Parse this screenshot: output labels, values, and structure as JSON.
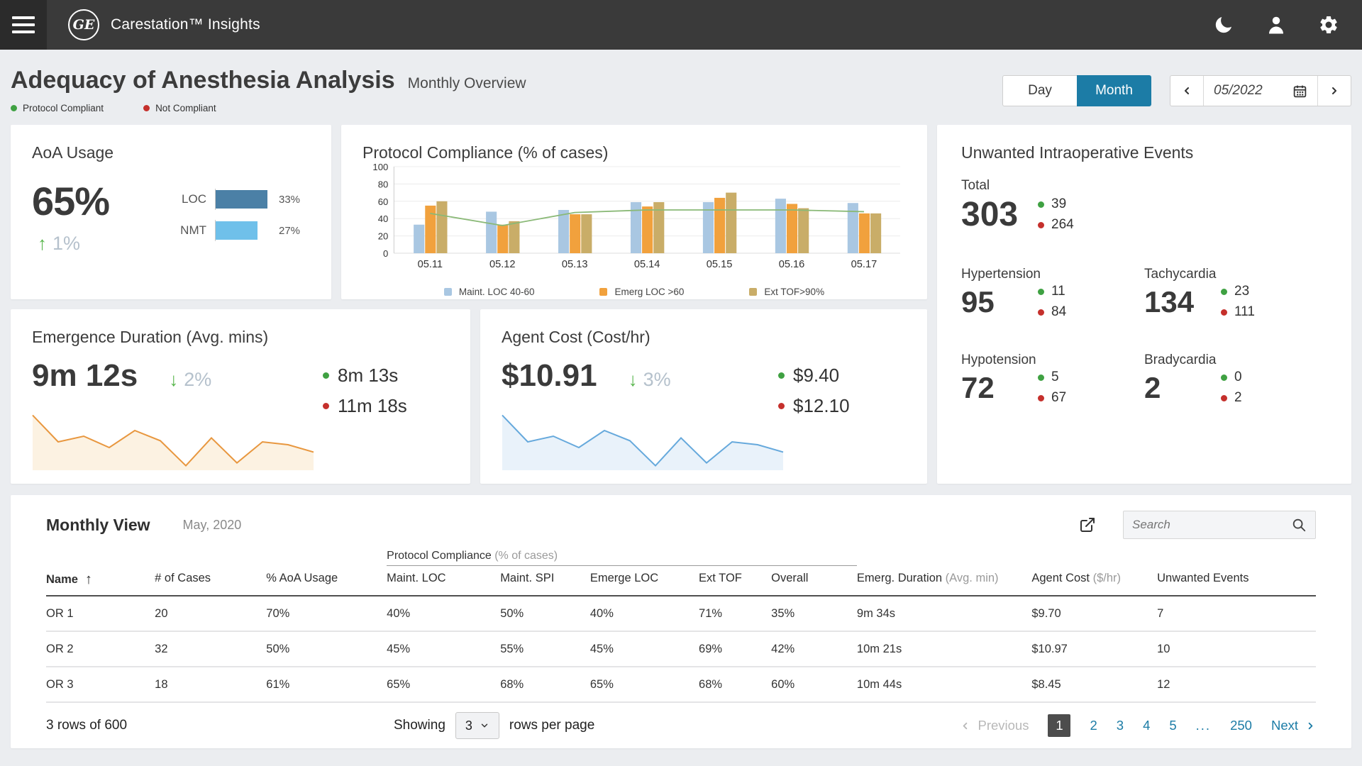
{
  "header": {
    "brand": "Carestation™ Insights",
    "logo": "GE"
  },
  "icons": {
    "trend_up": "↑",
    "trend_down": "↓",
    "sort_up": "↑"
  },
  "page": {
    "title": "Adequacy of Anesthesia Analysis",
    "subtitle": "Monthly Overview",
    "legend": [
      {
        "label": "Protocol Compliant",
        "color": "#3fa142"
      },
      {
        "label": "Not Compliant",
        "color": "#c5302c"
      }
    ],
    "toggle": {
      "day": "Day",
      "month": "Month",
      "selected": "Month",
      "accent": "#1c7ca6"
    },
    "date": "05/2022"
  },
  "cards": {
    "aoa": {
      "title": "AoA Usage",
      "value": "65%",
      "trend": "1%",
      "trend_dir": "up",
      "bars": [
        {
          "label": "LOC",
          "value": 33,
          "pct": "33%",
          "color": "#4b80a6"
        },
        {
          "label": "NMT",
          "value": 27,
          "pct": "27%",
          "color": "#6fc0ea"
        }
      ],
      "bar_scale_max": 35
    },
    "protocol": {
      "title": "Protocol Compliance (% of cases)"
    },
    "events": {
      "title": "Unwanted Intraoperative Events",
      "groups": [
        {
          "label": "Total",
          "value": "303",
          "good": "39",
          "bad": "264"
        },
        {
          "label": "Hypertension",
          "value": "95",
          "good": "11",
          "bad": "84"
        },
        {
          "label": "Tachycardia",
          "value": "134",
          "good": "23",
          "bad": "111"
        },
        {
          "label": "Hypotension",
          "value": "72",
          "good": "5",
          "bad": "67"
        },
        {
          "label": "Bradycardia",
          "value": "2",
          "good": "0",
          "bad": "2"
        }
      ]
    },
    "emergence": {
      "title": "Emergence Duration (Avg. mins)",
      "value": "9m 12s",
      "trend": "2%",
      "trend_dir": "down",
      "good": "8m 13s",
      "bad": "11m 18s"
    },
    "cost": {
      "title": "Agent Cost (Cost/hr)",
      "value": "$10.91",
      "trend": "3%",
      "trend_dir": "down",
      "good": "$9.40",
      "bad": "$12.10"
    }
  },
  "chart_data": [
    {
      "type": "bar",
      "title": "Protocol Compliance (% of cases)",
      "categories": [
        "05.11",
        "05.12",
        "05.13",
        "05.14",
        "05.15",
        "05.16",
        "05.17"
      ],
      "series": [
        {
          "name": "Maint. LOC 40-60",
          "type": "bar",
          "color": "#a9c7e2",
          "values": [
            33,
            48,
            50,
            59,
            59,
            63,
            58
          ]
        },
        {
          "name": "Emerg LOC >60",
          "type": "bar",
          "color": "#f1a13d",
          "values": [
            55,
            33,
            45,
            54,
            64,
            57,
            46
          ]
        },
        {
          "name": "Ext TOF>90%",
          "type": "bar",
          "color": "#c9ad68",
          "values": [
            60,
            37,
            45,
            59,
            70,
            52,
            46
          ]
        },
        {
          "name": "trend-line",
          "type": "line",
          "color": "#8ab977",
          "values": [
            46,
            32,
            47,
            50,
            50,
            50,
            48
          ]
        }
      ],
      "ylim": [
        0,
        100
      ],
      "yticks": [
        0,
        20,
        40,
        60,
        80,
        100
      ],
      "grid": true,
      "legend_position": "bottom"
    },
    {
      "type": "area",
      "name": "emergence-duration-trend",
      "stroke": "#e8973f",
      "fill": "#fcf2e2",
      "values": [
        92,
        45,
        55,
        35,
        65,
        47,
        3,
        52,
        8,
        45,
        40,
        27
      ]
    },
    {
      "type": "area",
      "name": "agent-cost-trend",
      "stroke": "#66a9dc",
      "fill": "#e9f2fa",
      "values": [
        92,
        45,
        55,
        35,
        65,
        47,
        3,
        52,
        8,
        45,
        40,
        27
      ]
    }
  ],
  "table": {
    "title": "Monthly View",
    "subtitle": "May, 2020",
    "search_placeholder": "Search",
    "group_header": {
      "label": "Protocol Compliance",
      "sub": " (% of cases)"
    },
    "columns": [
      {
        "label": "Name",
        "sub": ""
      },
      {
        "label": "# of Cases",
        "sub": ""
      },
      {
        "label": "% AoA Usage",
        "sub": ""
      },
      {
        "label": "Maint. LOC",
        "sub": ""
      },
      {
        "label": "Maint. SPI",
        "sub": ""
      },
      {
        "label": "Emerge LOC",
        "sub": ""
      },
      {
        "label": "Ext TOF",
        "sub": ""
      },
      {
        "label": "Overall",
        "sub": ""
      },
      {
        "label": "Emerg. Duration",
        "sub": " (Avg. min)"
      },
      {
        "label": "Agent Cost",
        "sub": " ($/hr)"
      },
      {
        "label": "Unwanted Events",
        "sub": ""
      }
    ],
    "rows": [
      [
        "OR 1",
        "20",
        "70%",
        "40%",
        "50%",
        "40%",
        "71%",
        "35%",
        "9m 34s",
        "$9.70",
        "7"
      ],
      [
        "OR 2",
        "32",
        "50%",
        "45%",
        "55%",
        "45%",
        "69%",
        "42%",
        "10m 21s",
        "$10.97",
        "10"
      ],
      [
        "OR 3",
        "18",
        "61%",
        "65%",
        "68%",
        "65%",
        "68%",
        "60%",
        "10m 44s",
        "$8.45",
        "12"
      ]
    ]
  },
  "footer": {
    "rows_info": "3 rows of 600",
    "showing_label": "Showing",
    "rows_select": "3",
    "rows_per_page_label": "rows per page",
    "previous_label": "Previous",
    "next_label": "Next",
    "pages": [
      "1",
      "2",
      "3",
      "4",
      "5",
      "...",
      "250"
    ],
    "active_page": "1"
  }
}
